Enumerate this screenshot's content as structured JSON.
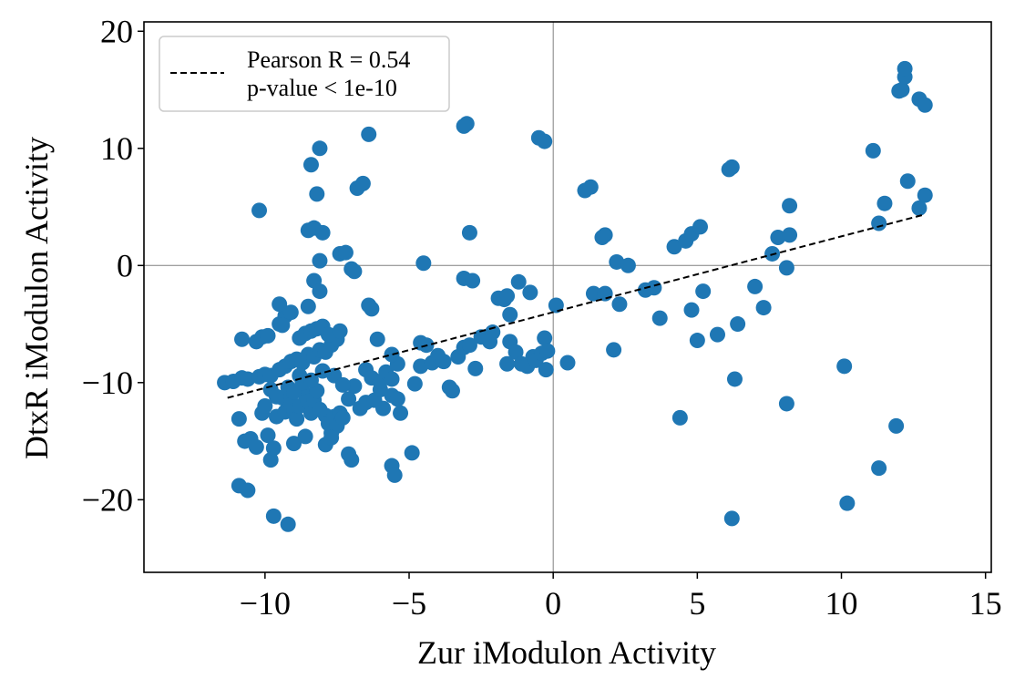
{
  "chart_data": {
    "type": "scatter",
    "xlabel": "Zur iModulon Activity",
    "ylabel": "DtxR iModulon Activity",
    "xlim": [
      -14.2,
      15.2
    ],
    "ylim": [
      -26.2,
      20.8
    ],
    "xticks": [
      -10,
      -5,
      0,
      5,
      10,
      15
    ],
    "yticks": [
      -20,
      -10,
      0,
      10,
      20
    ],
    "xtick_labels": [
      "−10",
      "−5",
      "0",
      "5",
      "10",
      "15"
    ],
    "ytick_labels": [
      "−20",
      "−10",
      "0",
      "10",
      "20"
    ],
    "reference_lines": {
      "x": 0,
      "y": 0,
      "color": "#808080"
    },
    "marker_color": "#1f77b4",
    "regression_line": {
      "x": [
        -11.3,
        12.8
      ],
      "y": [
        -11.3,
        4.3
      ],
      "style": "dashed",
      "color": "#000000"
    },
    "legend": {
      "placement": "top-left",
      "line1": "Pearson R = 0.54",
      "line2": "p-value < 1e-10"
    },
    "points": [
      [
        -11.4,
        -10.0
      ],
      [
        -11.1,
        -9.9
      ],
      [
        -10.8,
        -9.6
      ],
      [
        -10.6,
        -9.7
      ],
      [
        -10.2,
        -9.5
      ],
      [
        -10.0,
        -9.3
      ],
      [
        -9.8,
        -9.4
      ],
      [
        -9.5,
        -8.9
      ],
      [
        -9.3,
        -8.6
      ],
      [
        -9.1,
        -8.2
      ],
      [
        -8.9,
        -8.0
      ],
      [
        -8.7,
        -8.3
      ],
      [
        -8.5,
        -7.6
      ],
      [
        -8.3,
        -7.8
      ],
      [
        -8.1,
        -7.2
      ],
      [
        -7.9,
        -7.4
      ],
      [
        -7.7,
        -6.8
      ],
      [
        -7.5,
        -6.3
      ],
      [
        -10.8,
        -6.3
      ],
      [
        -10.3,
        -6.5
      ],
      [
        -10.1,
        -6.1
      ],
      [
        -9.9,
        -6.0
      ],
      [
        -9.5,
        -5.0
      ],
      [
        -9.3,
        -4.3
      ],
      [
        -9.1,
        -4.0
      ],
      [
        -8.8,
        -6.2
      ],
      [
        -8.6,
        -5.8
      ],
      [
        -8.4,
        -5.6
      ],
      [
        -8.2,
        -5.4
      ],
      [
        -8.0,
        -5.2
      ],
      [
        -7.8,
        -5.9
      ],
      [
        -7.4,
        -5.6
      ],
      [
        -9.5,
        -3.3
      ],
      [
        -9.4,
        -5.1
      ],
      [
        -8.5,
        -3.5
      ],
      [
        -10.9,
        -13.1
      ],
      [
        -10.7,
        -15.0
      ],
      [
        -10.5,
        -14.8
      ],
      [
        -10.3,
        -15.5
      ],
      [
        -10.1,
        -12.6
      ],
      [
        -10.0,
        -12.0
      ],
      [
        -9.9,
        -14.5
      ],
      [
        -9.8,
        -16.6
      ],
      [
        -9.7,
        -15.6
      ],
      [
        -9.6,
        -12.9
      ],
      [
        -9.4,
        -11.3
      ],
      [
        -9.3,
        -12.5
      ],
      [
        -9.1,
        -11.9
      ],
      [
        -9.0,
        -12.4
      ],
      [
        -8.9,
        -13.1
      ],
      [
        -8.8,
        -12.0
      ],
      [
        -8.6,
        -11.0
      ],
      [
        -8.5,
        -11.6
      ],
      [
        -8.4,
        -12.6
      ],
      [
        -8.3,
        -11.5
      ],
      [
        -8.2,
        -10.7
      ],
      [
        -8.1,
        -12.3
      ],
      [
        -7.9,
        -12.8
      ],
      [
        -7.8,
        -13.5
      ],
      [
        -7.7,
        -14.3
      ],
      [
        -7.6,
        -12.9
      ],
      [
        -7.5,
        -13.7
      ],
      [
        -7.4,
        -12.6
      ],
      [
        -7.3,
        -13.0
      ],
      [
        -7.1,
        -11.4
      ],
      [
        -6.9,
        -10.3
      ],
      [
        -10.9,
        -18.8
      ],
      [
        -10.6,
        -19.2
      ],
      [
        -9.7,
        -21.4
      ],
      [
        -9.2,
        -22.1
      ],
      [
        -9.0,
        -15.2
      ],
      [
        -8.6,
        -14.6
      ],
      [
        -7.9,
        -15.3
      ],
      [
        -7.7,
        -14.7
      ],
      [
        -7.1,
        -16.1
      ],
      [
        -7.0,
        -16.6
      ],
      [
        -5.6,
        -17.1
      ],
      [
        -5.5,
        -17.9
      ],
      [
        -4.9,
        -16.0
      ],
      [
        -9.8,
        -10.6
      ],
      [
        -9.6,
        -11.2
      ],
      [
        -9.2,
        -10.4
      ],
      [
        -9.0,
        -10.8
      ],
      [
        -8.8,
        -9.4
      ],
      [
        -8.7,
        -10.0
      ],
      [
        -8.4,
        -9.8
      ],
      [
        -8.0,
        -9.0
      ],
      [
        -7.6,
        -9.4
      ],
      [
        -7.3,
        -10.2
      ],
      [
        -6.7,
        -12.2
      ],
      [
        -6.5,
        -11.7
      ],
      [
        -6.2,
        -11.5
      ],
      [
        -6.0,
        -10.6
      ],
      [
        -5.9,
        -12.2
      ],
      [
        -5.6,
        -11.1
      ],
      [
        -5.4,
        -11.4
      ],
      [
        -5.3,
        -12.6
      ],
      [
        -4.8,
        -10.1
      ],
      [
        -6.5,
        -8.9
      ],
      [
        -6.3,
        -9.6
      ],
      [
        -6.0,
        -9.9
      ],
      [
        -5.8,
        -9.1
      ],
      [
        -5.6,
        -9.7
      ],
      [
        -5.4,
        -8.4
      ],
      [
        -5.6,
        -7.6
      ],
      [
        -6.1,
        -6.3
      ],
      [
        -4.6,
        -6.6
      ],
      [
        -4.4,
        -6.8
      ],
      [
        -4.6,
        -8.6
      ],
      [
        -4.2,
        -8.3
      ],
      [
        -4.0,
        -7.7
      ],
      [
        -3.8,
        -8.2
      ],
      [
        -3.6,
        -10.4
      ],
      [
        -3.5,
        -10.7
      ],
      [
        -3.3,
        -7.8
      ],
      [
        -3.1,
        -7.0
      ],
      [
        -2.9,
        -6.8
      ],
      [
        -2.7,
        -8.8
      ],
      [
        -2.5,
        -6.1
      ],
      [
        -2.2,
        -6.5
      ],
      [
        -2.1,
        -5.7
      ],
      [
        -1.9,
        -2.8
      ],
      [
        -1.7,
        -2.9
      ],
      [
        -1.6,
        -2.6
      ],
      [
        -1.5,
        -4.2
      ],
      [
        -1.5,
        -6.5
      ],
      [
        -1.3,
        -7.4
      ],
      [
        -1.2,
        -1.4
      ],
      [
        -1.1,
        -8.4
      ],
      [
        -0.9,
        -8.6
      ],
      [
        -0.8,
        -2.3
      ],
      [
        -0.7,
        -7.8
      ],
      [
        -0.6,
        -8.1
      ],
      [
        -0.4,
        -7.5
      ],
      [
        -0.3,
        -6.2
      ],
      [
        -0.25,
        -8.9
      ],
      [
        -0.2,
        -7.3
      ],
      [
        0.1,
        -3.4
      ],
      [
        0.5,
        -8.3
      ],
      [
        -1.6,
        -8.4
      ],
      [
        -3.1,
        -1.1
      ],
      [
        -2.8,
        -1.3
      ],
      [
        -2.9,
        2.8
      ],
      [
        -3.0,
        12.1
      ],
      [
        -3.1,
        11.9
      ],
      [
        -0.5,
        10.9
      ],
      [
        -0.3,
        10.6
      ],
      [
        -4.5,
        0.2
      ],
      [
        -10.2,
        4.7
      ],
      [
        -8.4,
        8.6
      ],
      [
        -8.1,
        10.0
      ],
      [
        -8.2,
        6.1
      ],
      [
        -8.3,
        -1.3
      ],
      [
        -8.1,
        -2.2
      ],
      [
        -8.1,
        0.4
      ],
      [
        -8.0,
        2.8
      ],
      [
        -8.3,
        3.2
      ],
      [
        -8.5,
        3.0
      ],
      [
        -7.4,
        1.0
      ],
      [
        -7.2,
        1.1
      ],
      [
        -7.0,
        -0.3
      ],
      [
        -6.9,
        -0.5
      ],
      [
        -6.8,
        6.6
      ],
      [
        -6.6,
        7.0
      ],
      [
        -6.4,
        11.2
      ],
      [
        -6.4,
        -3.4
      ],
      [
        -6.3,
        -3.7
      ],
      [
        1.1,
        6.4
      ],
      [
        1.3,
        6.7
      ],
      [
        1.7,
        2.4
      ],
      [
        1.8,
        2.6
      ],
      [
        1.4,
        -2.4
      ],
      [
        1.8,
        -2.4
      ],
      [
        2.2,
        0.3
      ],
      [
        2.3,
        -3.3
      ],
      [
        2.6,
        0.0
      ],
      [
        2.1,
        -7.2
      ],
      [
        3.2,
        -2.1
      ],
      [
        3.5,
        -1.9
      ],
      [
        3.7,
        -4.5
      ],
      [
        4.2,
        1.6
      ],
      [
        4.6,
        2.1
      ],
      [
        4.8,
        2.7
      ],
      [
        5.1,
        3.3
      ],
      [
        4.8,
        -3.8
      ],
      [
        5.0,
        -6.4
      ],
      [
        5.2,
        -2.2
      ],
      [
        5.7,
        -5.9
      ],
      [
        6.1,
        8.2
      ],
      [
        6.2,
        8.4
      ],
      [
        6.4,
        -5.0
      ],
      [
        6.3,
        -9.7
      ],
      [
        7.0,
        -1.8
      ],
      [
        7.3,
        -3.6
      ],
      [
        7.6,
        1.0
      ],
      [
        7.8,
        2.4
      ],
      [
        8.2,
        2.6
      ],
      [
        8.1,
        -0.2
      ],
      [
        8.2,
        5.1
      ],
      [
        8.1,
        -11.8
      ],
      [
        4.4,
        -13.0
      ],
      [
        6.2,
        -21.6
      ],
      [
        10.1,
        -8.6
      ],
      [
        10.2,
        -20.3
      ],
      [
        11.1,
        9.8
      ],
      [
        11.3,
        3.6
      ],
      [
        11.5,
        5.3
      ],
      [
        11.3,
        -17.3
      ],
      [
        11.9,
        -13.7
      ],
      [
        12.0,
        14.9
      ],
      [
        12.1,
        15.0
      ],
      [
        12.2,
        16.1
      ],
      [
        12.2,
        16.8
      ],
      [
        12.3,
        7.2
      ],
      [
        12.7,
        4.9
      ],
      [
        12.7,
        14.2
      ],
      [
        12.9,
        13.7
      ],
      [
        12.9,
        6.0
      ]
    ]
  }
}
